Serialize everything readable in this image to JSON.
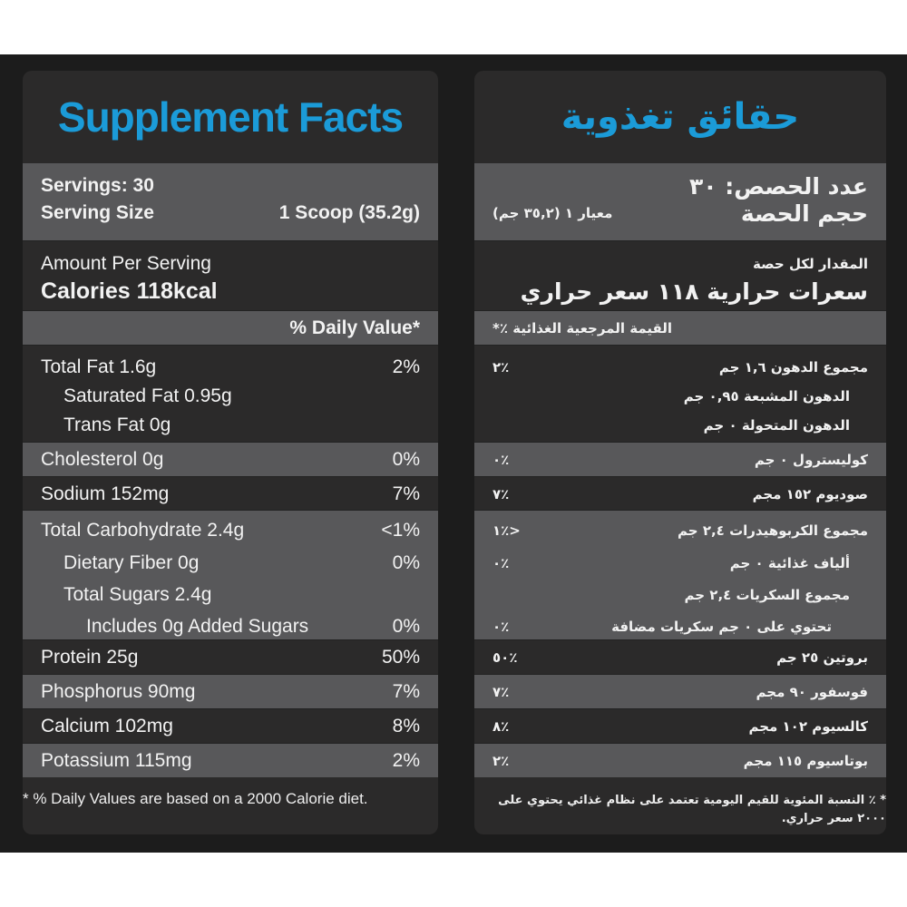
{
  "colors": {
    "title": "#1b9bd8",
    "grey_row": "#58585a",
    "dark_row": "#2b2a2a",
    "background": "#1c1c1c"
  },
  "english": {
    "title": "Supplement Facts",
    "sections": [
      {
        "bg": "g",
        "lines": [
          {
            "label": "Servings: 30",
            "value": "",
            "style": "bold"
          },
          {
            "label": "Serving Size",
            "value": "1 Scoop  (35.2g)",
            "style": "bold"
          }
        ]
      },
      {
        "bg": "d",
        "lines": [
          {
            "label": "Amount Per Serving",
            "value": ""
          },
          {
            "label": "Calories  118kcal",
            "value": "",
            "style": "big"
          }
        ]
      },
      {
        "bg": "g",
        "lines": [
          {
            "label": "",
            "value": "% Daily Value*",
            "style": "bold"
          }
        ]
      },
      {
        "bg": "d",
        "lines": [
          {
            "label": "Total Fat 1.6g",
            "value": "2%"
          },
          {
            "label": "Saturated Fat 0.95g",
            "value": "",
            "indent": 1
          },
          {
            "label": "Trans Fat 0g",
            "value": "",
            "indent": 1
          }
        ]
      },
      {
        "bg": "g",
        "lines": [
          {
            "label": "Cholesterol 0g",
            "value": "0%"
          }
        ]
      },
      {
        "bg": "d",
        "lines": [
          {
            "label": "Sodium 152mg",
            "value": "7%"
          }
        ]
      },
      {
        "bg": "g",
        "lines": [
          {
            "label": "Total Carbohydrate 2.4g",
            "value": "<1%"
          },
          {
            "label": "Dietary Fiber 0g",
            "value": "0%",
            "indent": 1
          },
          {
            "label": "Total Sugars 2.4g",
            "value": "",
            "indent": 1
          },
          {
            "label": "Includes 0g Added Sugars",
            "value": "0%",
            "indent": 2
          }
        ]
      },
      {
        "bg": "d",
        "lines": [
          {
            "label": "Protein 25g",
            "value": "50%"
          }
        ]
      },
      {
        "bg": "g",
        "lines": [
          {
            "label": "Phosphorus 90mg",
            "value": "7%"
          }
        ]
      },
      {
        "bg": "d",
        "lines": [
          {
            "label": "Calcium 102mg",
            "value": "8%"
          }
        ]
      },
      {
        "bg": "g",
        "lines": [
          {
            "label": "Potassium 115mg",
            "value": "2%"
          }
        ]
      }
    ],
    "footnote": "*  % Daily Values are based on a 2000 Calorie diet."
  },
  "arabic": {
    "title": "حقائق تغذوية",
    "sections": [
      {
        "bg": "g",
        "lines": [
          {
            "label": "عدد الحصص: ٣٠",
            "value": "",
            "style": "big"
          },
          {
            "label": "حجم الحصة",
            "value": "معيار ١  (٣٥,٢ جم)",
            "style": "big"
          }
        ]
      },
      {
        "bg": "d",
        "lines": [
          {
            "label": "المقدار لكل حصة",
            "value": ""
          },
          {
            "label": "سعرات حرارية  ١١٨ سعر حراري",
            "value": "",
            "style": "big"
          }
        ]
      },
      {
        "bg": "g",
        "lines": [
          {
            "label": "",
            "value": "القيمة المرجعية الغذائية ٪*"
          }
        ]
      },
      {
        "bg": "d",
        "lines": [
          {
            "label": "مجموع الدهون ١,٦ جم",
            "value": "٪٢"
          },
          {
            "label": "الدهون المشبعة ٠,٩٥ جم",
            "value": "",
            "indent": 1
          },
          {
            "label": "الدهون المتحولة ٠ جم",
            "value": "",
            "indent": 1
          }
        ]
      },
      {
        "bg": "g",
        "lines": [
          {
            "label": "كوليسترول ٠ جم",
            "value": "٪٠"
          }
        ]
      },
      {
        "bg": "d",
        "lines": [
          {
            "label": "صوديوم ١٥٢ مجم",
            "value": "٪٧"
          }
        ]
      },
      {
        "bg": "g",
        "lines": [
          {
            "label": "مجموع الكربوهيدرات ٢,٤ جم",
            "value": "<٪١"
          },
          {
            "label": "ألياف غذائية ٠ جم",
            "value": "٪٠",
            "indent": 1
          },
          {
            "label": "مجموع السكريات ٢,٤ جم",
            "value": "",
            "indent": 1
          },
          {
            "label": "تحتوي على ٠ جم سكريات مضافة",
            "value": "٪٠",
            "indent": 2
          }
        ]
      },
      {
        "bg": "d",
        "lines": [
          {
            "label": "بروتين ٢٥ جم",
            "value": "٪٥٠"
          }
        ]
      },
      {
        "bg": "g",
        "lines": [
          {
            "label": "فوسفور ٩٠ مجم",
            "value": "٪٧"
          }
        ]
      },
      {
        "bg": "d",
        "lines": [
          {
            "label": "كالسيوم ١٠٢ مجم",
            "value": "٪٨"
          }
        ]
      },
      {
        "bg": "g",
        "lines": [
          {
            "label": "بوتاسيوم ١١٥ مجم",
            "value": "٪٢"
          }
        ]
      }
    ],
    "footnote": "* ٪ النسبة المئوية للقيم اليومية تعتمد على نظام غذائي يحتوي على ٢٠٠٠ سعر حراري."
  }
}
